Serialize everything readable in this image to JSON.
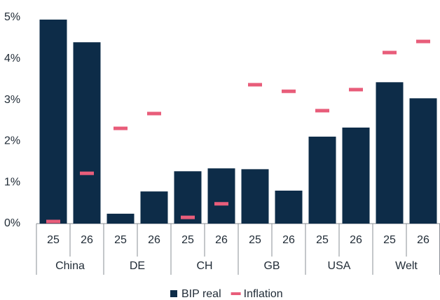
{
  "chart_data": {
    "type": "bar",
    "categories": [
      "25",
      "26",
      "25",
      "26",
      "25",
      "26",
      "25",
      "26",
      "25",
      "26",
      "25",
      "26"
    ],
    "groups": [
      "China",
      "DE",
      "CH",
      "GB",
      "USA",
      "Welt"
    ],
    "series": [
      {
        "name": "BIP real",
        "type": "bar",
        "color": "#0d2c48",
        "values": [
          4.95,
          4.4,
          0.24,
          0.78,
          1.27,
          1.34,
          1.32,
          0.8,
          2.11,
          2.33,
          3.43,
          3.04
        ]
      },
      {
        "name": "Inflation",
        "type": "marker",
        "color": "#e85d7a",
        "values": [
          0.05,
          1.22,
          2.31,
          2.67,
          0.15,
          0.48,
          3.37,
          3.21,
          2.74,
          3.25,
          4.15,
          4.42
        ]
      }
    ],
    "ylim": [
      0,
      5
    ],
    "yticks": [
      {
        "value": 0,
        "label": "0%"
      },
      {
        "value": 1,
        "label": "1%"
      },
      {
        "value": 2,
        "label": "2%"
      },
      {
        "value": 3,
        "label": "3%"
      },
      {
        "value": 4,
        "label": "4%"
      },
      {
        "value": 5,
        "label": "5%"
      }
    ],
    "grid": false,
    "legend": "bottom"
  }
}
